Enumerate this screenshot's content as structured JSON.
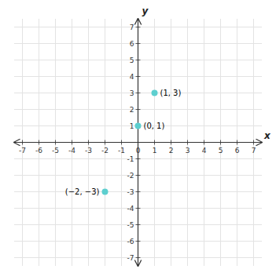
{
  "chart_data": {
    "type": "scatter",
    "x": [
      -2,
      0,
      1
    ],
    "values": [
      -3,
      1,
      3
    ],
    "value_labels": [
      "(−2, −3)",
      "(0, 1)",
      "(1, 3)"
    ],
    "data_labels": true,
    "color": "#5DCFCF",
    "x_label": "x",
    "y_label": "y",
    "xlim": [
      -7.5,
      7.5
    ],
    "ylim": [
      -7.5,
      7.5
    ],
    "xticks": [
      -7,
      -6,
      -5,
      -4,
      -3,
      -2,
      -1,
      0,
      1,
      2,
      3,
      4,
      5,
      6,
      7
    ],
    "yticks": [
      -7,
      -6,
      -5,
      -4,
      -3,
      -2,
      -1,
      1,
      2,
      3,
      4,
      5,
      6,
      7
    ],
    "grid": true
  }
}
